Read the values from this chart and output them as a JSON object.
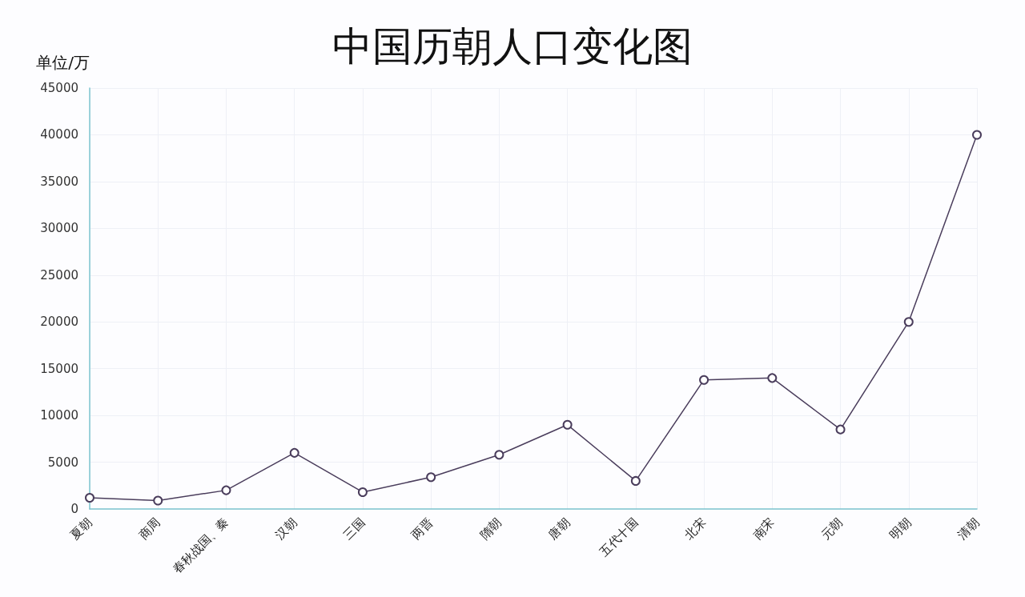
{
  "chart_data": {
    "type": "line",
    "title": "中国历朝人口变化图",
    "ylabel": "单位/万",
    "categories": [
      "夏朝",
      "商周",
      "春秋战国、秦",
      "汉朝",
      "三国",
      "两晋",
      "隋朝",
      "唐朝",
      "五代十国",
      "北宋",
      "南宋",
      "元朝",
      "明朝",
      "清朝"
    ],
    "series": [
      {
        "color": "#4a3d5c",
        "values": [
          1200,
          900,
          2000,
          6000,
          1800,
          3400,
          5800,
          9000,
          3000,
          13800,
          14000,
          8500,
          20000,
          40000
        ]
      }
    ],
    "ylim": [
      0,
      45000
    ],
    "yticks": [
      0,
      5000,
      10000,
      15000,
      20000,
      25000,
      30000,
      35000,
      40000,
      45000
    ],
    "grid": true,
    "marker": "circle",
    "line_style": "solid"
  }
}
